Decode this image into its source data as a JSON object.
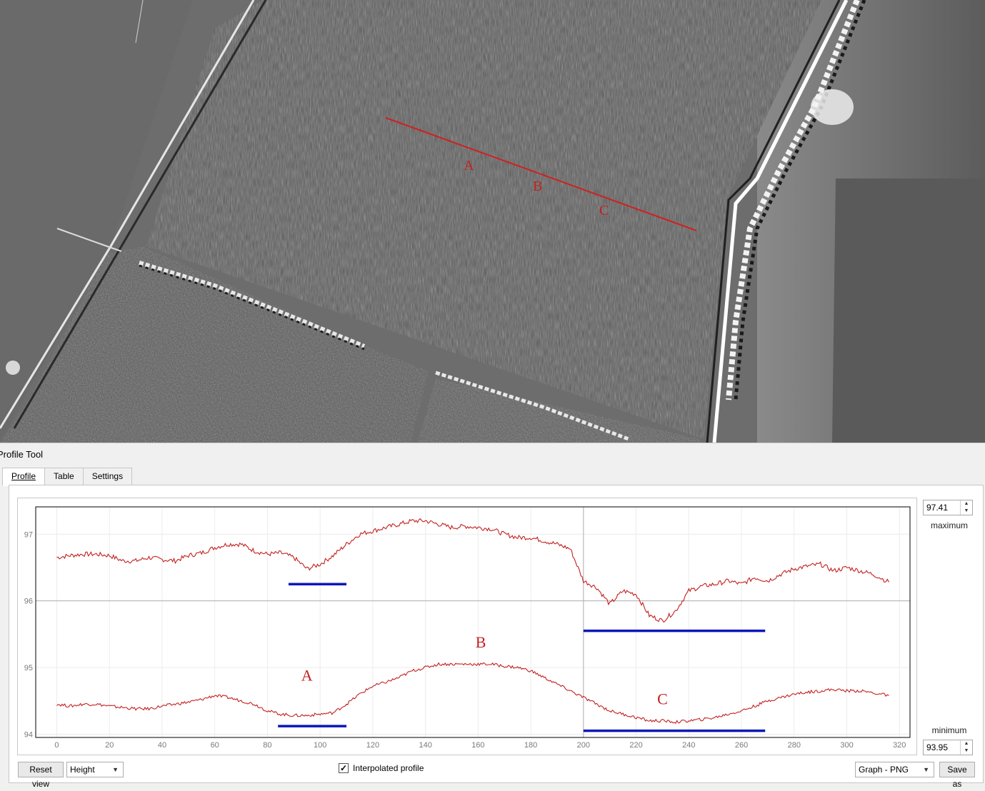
{
  "map": {
    "profile_labels": [
      "A",
      "B",
      "C"
    ],
    "line_color": "#d02020"
  },
  "panel": {
    "title": "Profile Tool",
    "tabs": [
      {
        "label": "Profile",
        "active": true
      },
      {
        "label": "Table",
        "active": false
      },
      {
        "label": "Settings",
        "active": false
      }
    ]
  },
  "chart_data": {
    "type": "line",
    "title": "",
    "xlabel": "",
    "ylabel": "",
    "xlim": [
      -8,
      324
    ],
    "ylim": [
      93.95,
      97.41
    ],
    "x_ticks": [
      0,
      20,
      40,
      60,
      80,
      100,
      120,
      140,
      160,
      180,
      200,
      220,
      240,
      260,
      280,
      300,
      320
    ],
    "y_ticks": [
      94,
      95,
      96,
      97
    ],
    "grid": true,
    "line_color": "#c42020",
    "highlight_color": "#0a18b8",
    "series": [
      {
        "x": [
          0,
          5,
          10,
          15,
          20,
          25,
          30,
          35,
          40,
          45,
          50,
          55,
          60,
          65,
          70,
          75,
          80,
          85,
          90,
          95,
          100,
          105,
          110,
          115,
          120,
          125,
          130,
          135,
          140,
          145,
          150,
          155,
          160,
          165,
          170,
          175,
          180,
          185,
          190,
          195,
          200,
          205,
          210,
          215,
          220,
          225,
          230,
          235,
          240,
          245,
          250,
          255,
          260,
          265,
          270,
          275,
          280,
          285,
          290,
          295,
          300,
          305,
          310,
          316
        ],
        "values": [
          96.65,
          96.68,
          96.7,
          96.7,
          96.68,
          96.6,
          96.6,
          96.65,
          96.62,
          96.6,
          96.68,
          96.72,
          96.8,
          96.85,
          96.85,
          96.75,
          96.7,
          96.72,
          96.65,
          96.48,
          96.55,
          96.68,
          96.85,
          97.0,
          97.05,
          97.1,
          97.15,
          97.2,
          97.2,
          97.15,
          97.1,
          97.12,
          97.1,
          97.08,
          97.0,
          96.95,
          96.95,
          96.9,
          96.85,
          96.78,
          96.3,
          96.2,
          95.95,
          96.15,
          96.1,
          95.78,
          95.7,
          95.85,
          96.15,
          96.22,
          96.25,
          96.3,
          96.25,
          96.35,
          96.3,
          96.4,
          96.48,
          96.52,
          96.55,
          96.45,
          96.5,
          96.45,
          96.4,
          96.28
        ]
      },
      {
        "x": [
          0,
          5,
          10,
          15,
          20,
          25,
          30,
          35,
          40,
          45,
          50,
          55,
          60,
          65,
          70,
          75,
          80,
          85,
          90,
          95,
          100,
          105,
          110,
          115,
          120,
          125,
          130,
          135,
          140,
          145,
          150,
          155,
          160,
          165,
          170,
          175,
          180,
          185,
          190,
          195,
          200,
          205,
          210,
          215,
          220,
          225,
          230,
          235,
          240,
          245,
          250,
          255,
          260,
          265,
          270,
          275,
          280,
          285,
          290,
          295,
          300,
          305,
          310,
          316
        ],
        "values": [
          94.45,
          94.42,
          94.45,
          94.45,
          94.42,
          94.4,
          94.38,
          94.38,
          94.42,
          94.45,
          94.48,
          94.52,
          94.58,
          94.55,
          94.5,
          94.45,
          94.35,
          94.3,
          94.28,
          94.28,
          94.3,
          94.32,
          94.45,
          94.6,
          94.72,
          94.78,
          94.85,
          94.95,
          95.0,
          95.05,
          95.05,
          95.05,
          95.05,
          95.05,
          95.02,
          95.0,
          94.95,
          94.85,
          94.75,
          94.65,
          94.55,
          94.45,
          94.35,
          94.3,
          94.25,
          94.2,
          94.2,
          94.18,
          94.2,
          94.22,
          94.25,
          94.3,
          94.35,
          94.42,
          94.5,
          94.55,
          94.6,
          94.63,
          94.65,
          94.67,
          94.65,
          94.65,
          94.62,
          94.58
        ]
      }
    ],
    "highlights": [
      {
        "x_start": 88,
        "x_end": 110,
        "y": 96.25
      },
      {
        "x_start": 200,
        "x_end": 269,
        "y": 95.55
      },
      {
        "x_start": 84,
        "x_end": 110,
        "y": 94.12
      },
      {
        "x_start": 200,
        "x_end": 269,
        "y": 94.05
      }
    ],
    "annotations": [
      {
        "text": "A",
        "x": 95,
        "y": 94.8
      },
      {
        "text": "B",
        "x": 161,
        "y": 95.3
      },
      {
        "text": "C",
        "x": 230,
        "y": 94.45
      }
    ]
  },
  "controls": {
    "max_value": "97.41",
    "max_label": "maximum",
    "min_value": "93.95",
    "min_label": "minimum",
    "reset_view": "Reset view",
    "type_select": "Height",
    "interpolated_label": "Interpolated profile",
    "interpolated_checked": true,
    "export_format": "Graph - PNG",
    "save_as": "Save as"
  }
}
